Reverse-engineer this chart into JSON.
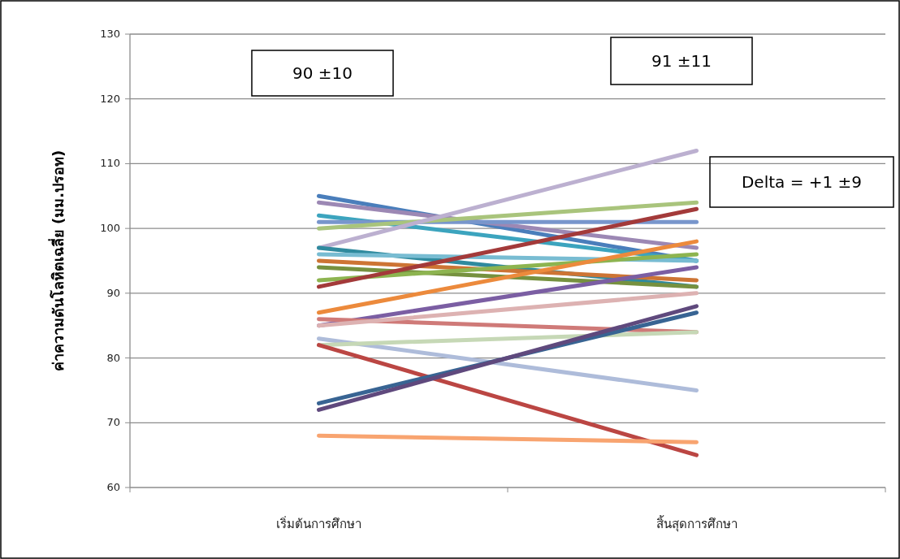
{
  "chart_data": {
    "type": "line",
    "categories": [
      "เริ่มต้นการศึกษา",
      "สิ้นสุดการศึกษา"
    ],
    "ylabel": "ค่าความดันโลหิตเฉลี่ย (มม.ปรอท)",
    "ylim": [
      60,
      130
    ],
    "yticks": [
      60,
      70,
      80,
      90,
      100,
      110,
      120,
      130
    ],
    "grid": "y",
    "marker": "none",
    "line_style": "solid",
    "annotations": [
      "90 ±10",
      "91 ±11",
      "Delta = +1 ±9"
    ],
    "series": [
      {
        "color": "#4a7ebb",
        "values": [
          105,
          95
        ]
      },
      {
        "color": "#9c88b4",
        "values": [
          104,
          97
        ]
      },
      {
        "color": "#3ca4be",
        "values": [
          102,
          95
        ]
      },
      {
        "color": "#7896cc",
        "values": [
          101,
          101
        ]
      },
      {
        "color": "#a9c47c",
        "values": [
          100,
          104
        ]
      },
      {
        "color": "#bcb0d0",
        "values": [
          97,
          112
        ]
      },
      {
        "color": "#2f8a9e",
        "values": [
          97,
          91
        ]
      },
      {
        "color": "#78bcd2",
        "values": [
          96,
          95
        ]
      },
      {
        "color": "#cd7434",
        "values": [
          95,
          92
        ]
      },
      {
        "color": "#76913f",
        "values": [
          94,
          91
        ]
      },
      {
        "color": "#8db450",
        "values": [
          92,
          96
        ]
      },
      {
        "color": "#a33a3a",
        "values": [
          91,
          103
        ]
      },
      {
        "color": "#ec8a3c",
        "values": [
          87,
          98
        ]
      },
      {
        "color": "#7b5ea3",
        "values": [
          85,
          94
        ]
      },
      {
        "color": "#cf7a78",
        "values": [
          86,
          84
        ]
      },
      {
        "color": "#ddb2b2",
        "values": [
          85,
          90
        ]
      },
      {
        "color": "#aebcda",
        "values": [
          83,
          75
        ]
      },
      {
        "color": "#c6d8b6",
        "values": [
          82,
          84
        ]
      },
      {
        "color": "#bb4643",
        "values": [
          82,
          65
        ]
      },
      {
        "color": "#386493",
        "values": [
          73,
          87
        ]
      },
      {
        "color": "#5f497d",
        "values": [
          72,
          88
        ]
      },
      {
        "color": "#f8a470",
        "values": [
          68,
          67
        ]
      }
    ]
  }
}
